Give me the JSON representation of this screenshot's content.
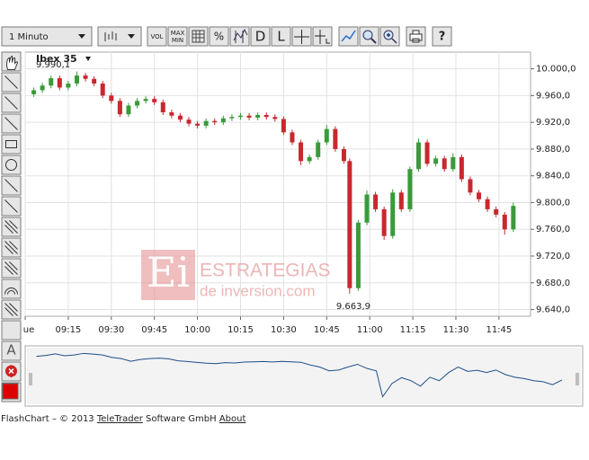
{
  "toolbar": {
    "interval": "1 Minuto",
    "vol": "VOL",
    "max": "MAX",
    "min": "MIN",
    "percent": "%",
    "d": "D",
    "l": "L",
    "help": "?"
  },
  "tools": {
    "text": "A"
  },
  "watermark": {
    "logo": "Ei",
    "line1": "ESTRATEGIAS",
    "line2": "de inversion.com"
  },
  "footer": {
    "prefix": "FlashChart – © 2013",
    "company": "TeleTrader",
    "suffix": "Software GmbH",
    "about": "About"
  },
  "chart_data": {
    "type": "candlestick",
    "title": "Ibex 35",
    "series": [
      {
        "name": "Ibex 35",
        "up_color": "#3a9a3a",
        "down_color": "#c8282e",
        "x": [
          "09:03",
          "09:06",
          "09:09",
          "09:12",
          "09:15",
          "09:18",
          "09:21",
          "09:24",
          "09:27",
          "09:30",
          "09:33",
          "09:36",
          "09:39",
          "09:42",
          "09:45",
          "09:48",
          "09:51",
          "09:54",
          "09:57",
          "10:00",
          "10:03",
          "10:06",
          "10:09",
          "10:12",
          "10:15",
          "10:18",
          "10:21",
          "10:24",
          "10:27",
          "10:30",
          "10:33",
          "10:36",
          "10:39",
          "10:42",
          "10:45",
          "10:48",
          "10:51",
          "10:53",
          "10:56",
          "10:59",
          "11:02",
          "11:05",
          "11:08",
          "11:11",
          "11:14",
          "11:17",
          "11:20",
          "11:23",
          "11:26",
          "11:29",
          "11:32",
          "11:35",
          "11:38",
          "11:41",
          "11:44",
          "11:47",
          "11:50"
        ],
        "open": [
          9962,
          9968,
          9975,
          9986,
          9972,
          9978,
          9990,
          9985,
          9978,
          9960,
          9952,
          9932,
          9945,
          9952,
          9955,
          9950,
          9935,
          9930,
          9924,
          9918,
          9915,
          9922,
          9920,
          9926,
          9928,
          9930,
          9927,
          9931,
          9928,
          9925,
          9905,
          9890,
          9862,
          9868,
          9890,
          9910,
          9880,
          9862,
          9672,
          9770,
          9812,
          9790,
          9750,
          9815,
          9790,
          9850,
          9890,
          9858,
          9866,
          9850,
          9868,
          9835,
          9815,
          9805,
          9790,
          9782,
          9760
        ],
        "high": [
          9972,
          9979,
          9990,
          9990,
          9982,
          9996,
          9994,
          9989,
          9982,
          9964,
          9956,
          9949,
          9956,
          9959,
          9959,
          9954,
          9939,
          9934,
          9928,
          9922,
          9926,
          9926,
          9930,
          9932,
          9934,
          9934,
          9935,
          9935,
          9932,
          9929,
          9909,
          9894,
          9872,
          9894,
          9916,
          9914,
          9884,
          9866,
          9774,
          9818,
          9816,
          9794,
          9820,
          9819,
          9854,
          9896,
          9894,
          9870,
          9870,
          9874,
          9872,
          9839,
          9819,
          9809,
          9794,
          9786,
          9800
        ],
        "low": [
          9958,
          9964,
          9971,
          9968,
          9968,
          9974,
          9981,
          9974,
          9956,
          9948,
          9928,
          9928,
          9941,
          9948,
          9946,
          9931,
          9926,
          9920,
          9914,
          9911,
          9911,
          9916,
          9916,
          9922,
          9924,
          9923,
          9923,
          9924,
          9921,
          9901,
          9886,
          9856,
          9858,
          9864,
          9886,
          9876,
          9858,
          9663.9,
          9668,
          9766,
          9786,
          9744,
          9746,
          9786,
          9786,
          9846,
          9854,
          9854,
          9846,
          9846,
          9831,
          9811,
          9801,
          9786,
          9778,
          9752,
          9756
        ],
        "close": [
          9968,
          9975,
          9986,
          9972,
          9978,
          9990,
          9985,
          9978,
          9960,
          9952,
          9932,
          9945,
          9952,
          9955,
          9950,
          9935,
          9930,
          9924,
          9918,
          9915,
          9922,
          9920,
          9926,
          9928,
          9930,
          9927,
          9931,
          9928,
          9925,
          9905,
          9890,
          9862,
          9868,
          9890,
          9910,
          9880,
          9862,
          9672,
          9770,
          9812,
          9790,
          9750,
          9815,
          9790,
          9850,
          9890,
          9858,
          9866,
          9850,
          9868,
          9835,
          9815,
          9805,
          9790,
          9782,
          9760,
          9795
        ]
      }
    ],
    "annotations": [
      {
        "value": 9990.1,
        "label": "9.990,1"
      },
      {
        "value": 9663.9,
        "label": "9.663,9"
      }
    ],
    "xlim": [
      "09:00",
      "11:56"
    ],
    "xticks": [
      {
        "value": "09:00",
        "label": "ue"
      },
      "09:15",
      "09:30",
      "09:45",
      "10:00",
      "10:15",
      "10:30",
      "10:45",
      "11:00",
      "11:15",
      "11:30",
      "11:45"
    ],
    "ylim": [
      9630,
      10025
    ],
    "yticks": [
      {
        "value": 9640,
        "label": "9.640,0"
      },
      {
        "value": 9680,
        "label": "9.680,0"
      },
      {
        "value": 9720,
        "label": "9.720,0"
      },
      {
        "value": 9760,
        "label": "9.760,0"
      },
      {
        "value": 9800,
        "label": "9.800,0"
      },
      {
        "value": 9840,
        "label": "9.840,0"
      },
      {
        "value": 9880,
        "label": "9.880,0"
      },
      {
        "value": 9920,
        "label": "9.920,0"
      },
      {
        "value": 9960,
        "label": "9.960,0"
      },
      {
        "value": 10000,
        "label": "10.000,0"
      }
    ],
    "grid": true,
    "axis_side": "right"
  }
}
